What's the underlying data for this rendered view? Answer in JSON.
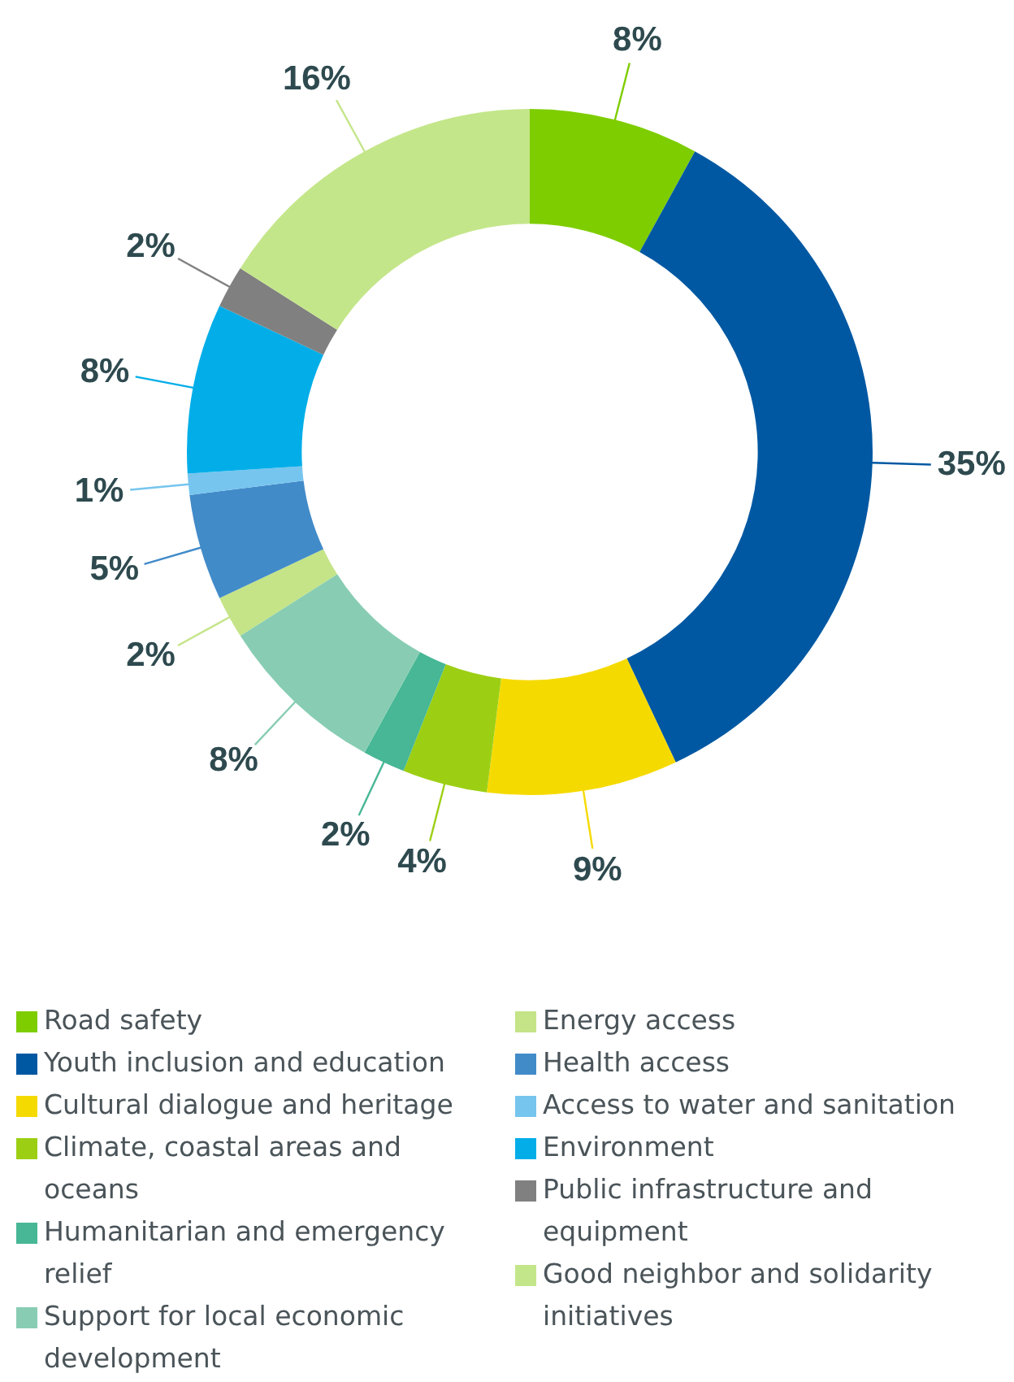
{
  "chart_data": {
    "type": "donut",
    "categories": [
      "Road safety",
      "Youth inclusion and education",
      "Cultural dialogue and heritage",
      "Climate, coastal areas and oceans",
      "Humanitarian and emergency relief",
      "Support for local economic development",
      "Energy access",
      "Health access",
      "Access to water and sanitation",
      "Environment",
      "Public infrastructure and equipment",
      "Good neighbor and solidarity initiatives"
    ],
    "values": [
      8,
      35,
      9,
      4,
      2,
      8,
      2,
      5,
      1,
      8,
      2,
      16
    ],
    "colors": [
      "#7ecd00",
      "#0058a2",
      "#f5da00",
      "#9ccf14",
      "#47b795",
      "#88cdb3",
      "#c4e487",
      "#428bc9",
      "#76c5ee",
      "#03aee8",
      "#808080",
      "#c4e68a"
    ],
    "value_labels": [
      "8%",
      "35%",
      "9%",
      "4%",
      "2%",
      "8%",
      "2%",
      "5%",
      "1%",
      "8%",
      "2%",
      "16%"
    ],
    "legend": "bottom"
  }
}
